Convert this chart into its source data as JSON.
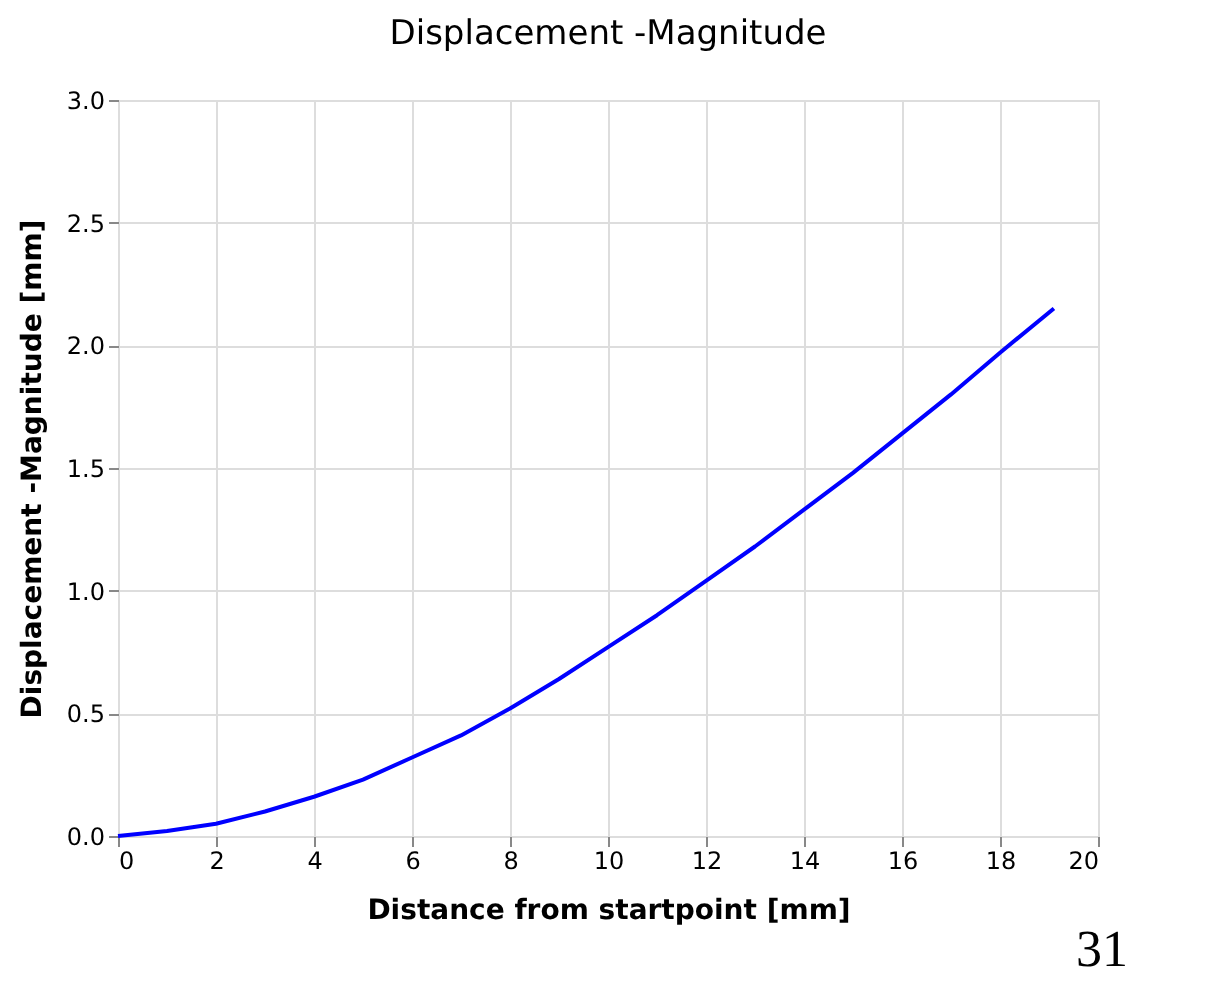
{
  "chart_data": {
    "type": "line",
    "title": "Displacement -Magnitude",
    "xlabel": "Distance from startpoint [mm]",
    "ylabel": "Displacement -Magnitude [mm]",
    "x": [
      0,
      1,
      2,
      3,
      4,
      5,
      6,
      7,
      8,
      9,
      10,
      11,
      12,
      13,
      14,
      15,
      16,
      17,
      18,
      19.1
    ],
    "series": [
      {
        "color": "#0000ff",
        "values": [
          0,
          0.02,
          0.05,
          0.1,
          0.16,
          0.23,
          0.32,
          0.41,
          0.52,
          0.64,
          0.77,
          0.9,
          1.04,
          1.18,
          1.33,
          1.48,
          1.64,
          1.8,
          1.97,
          2.15
        ]
      }
    ],
    "xlim": [
      0,
      20
    ],
    "xticks": [
      0,
      2,
      4,
      6,
      8,
      10,
      12,
      14,
      16,
      18,
      20
    ],
    "ylim": [
      0,
      3
    ],
    "yticks": [
      {
        "value": 0,
        "label": "0.0"
      },
      {
        "value": 0.5,
        "label": "0.5"
      },
      {
        "value": 1,
        "label": "1.0"
      },
      {
        "value": 1.5,
        "label": "1.5"
      },
      {
        "value": 2,
        "label": "2.0"
      },
      {
        "value": 2.5,
        "label": "2.5"
      },
      {
        "value": 3,
        "label": "3.0"
      }
    ],
    "grid": true,
    "marker": "none",
    "line_style": "solid",
    "annotations": [
      "31"
    ]
  }
}
